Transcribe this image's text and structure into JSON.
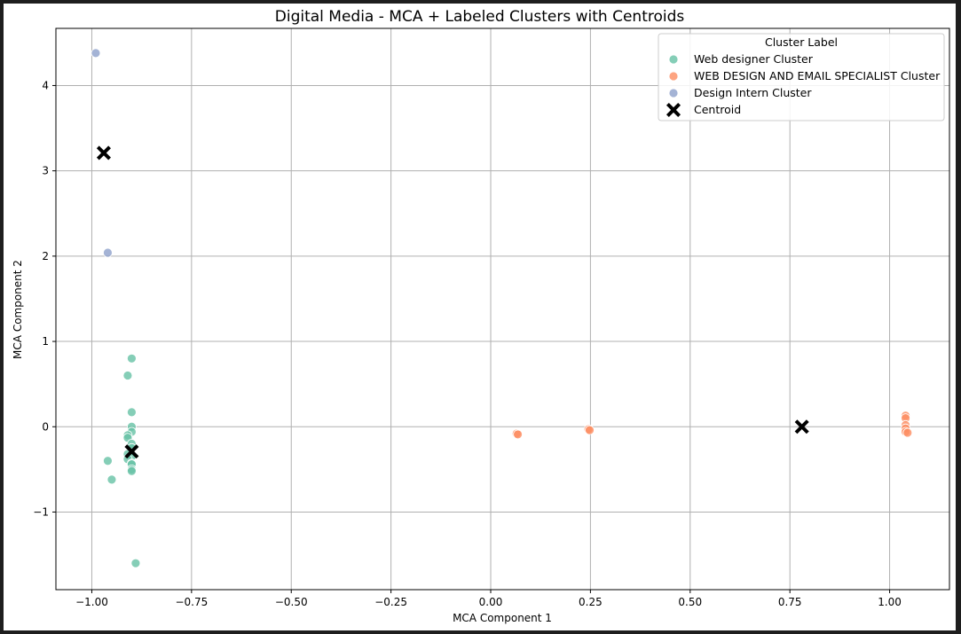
{
  "chart_data": {
    "type": "scatter",
    "title": "Digital Media - MCA + Labeled Clusters with Centroids",
    "xlabel": "MCA Component 1",
    "ylabel": "MCA Component 2",
    "xlim": [
      -1.09,
      1.15
    ],
    "ylim": [
      -1.91,
      4.67
    ],
    "grid": true,
    "x_ticks": [
      -1.0,
      -0.75,
      -0.5,
      -0.25,
      0.0,
      0.25,
      0.5,
      0.75,
      1.0
    ],
    "x_tick_labels": [
      "−1.00",
      "−0.75",
      "−0.50",
      "−0.25",
      "0.00",
      "0.25",
      "0.50",
      "0.75",
      "1.00"
    ],
    "y_ticks": [
      -1,
      0,
      1,
      2,
      3,
      4
    ],
    "y_tick_labels": [
      "−1",
      "0",
      "1",
      "2",
      "3",
      "4"
    ],
    "legend": {
      "title": "Cluster Label",
      "placement": "top-right"
    },
    "series": [
      {
        "name": "Web designer Cluster",
        "color": "#66c2a5",
        "marker": "circle",
        "points": [
          [
            -0.9,
            0.8
          ],
          [
            -0.91,
            0.6
          ],
          [
            -0.9,
            0.17
          ],
          [
            -0.9,
            0.0
          ],
          [
            -0.9,
            -0.06
          ],
          [
            -0.91,
            -0.1
          ],
          [
            -0.91,
            -0.13
          ],
          [
            -0.9,
            -0.2
          ],
          [
            -0.9,
            -0.25
          ],
          [
            -0.91,
            -0.32
          ],
          [
            -0.9,
            -0.35
          ],
          [
            -0.91,
            -0.38
          ],
          [
            -0.9,
            -0.43
          ],
          [
            -0.9,
            -0.44
          ],
          [
            -0.9,
            -0.5
          ],
          [
            -0.9,
            -0.52
          ],
          [
            -0.96,
            -0.4
          ],
          [
            -0.95,
            -0.62
          ],
          [
            -0.89,
            -1.6
          ]
        ]
      },
      {
        "name": "WEB DESIGN AND EMAIL SPECIALIST Cluster",
        "color": "#fc8d62",
        "marker": "circle",
        "points": [
          [
            0.065,
            -0.08
          ],
          [
            0.068,
            -0.09
          ],
          [
            0.245,
            -0.03
          ],
          [
            0.248,
            -0.04
          ],
          [
            1.04,
            0.13
          ],
          [
            1.04,
            0.1
          ],
          [
            1.04,
            0.02
          ],
          [
            1.04,
            -0.02
          ],
          [
            1.04,
            -0.06
          ],
          [
            1.045,
            -0.07
          ]
        ]
      },
      {
        "name": "Design Intern Cluster",
        "color": "#8da0cb",
        "marker": "circle",
        "points": [
          [
            -0.99,
            4.38
          ],
          [
            -0.96,
            2.04
          ]
        ]
      },
      {
        "name": "Centroid",
        "color": "#000000",
        "marker": "x",
        "points": [
          [
            -0.97,
            3.21
          ],
          [
            -0.9,
            -0.29
          ],
          [
            0.78,
            0.0
          ]
        ]
      }
    ]
  }
}
